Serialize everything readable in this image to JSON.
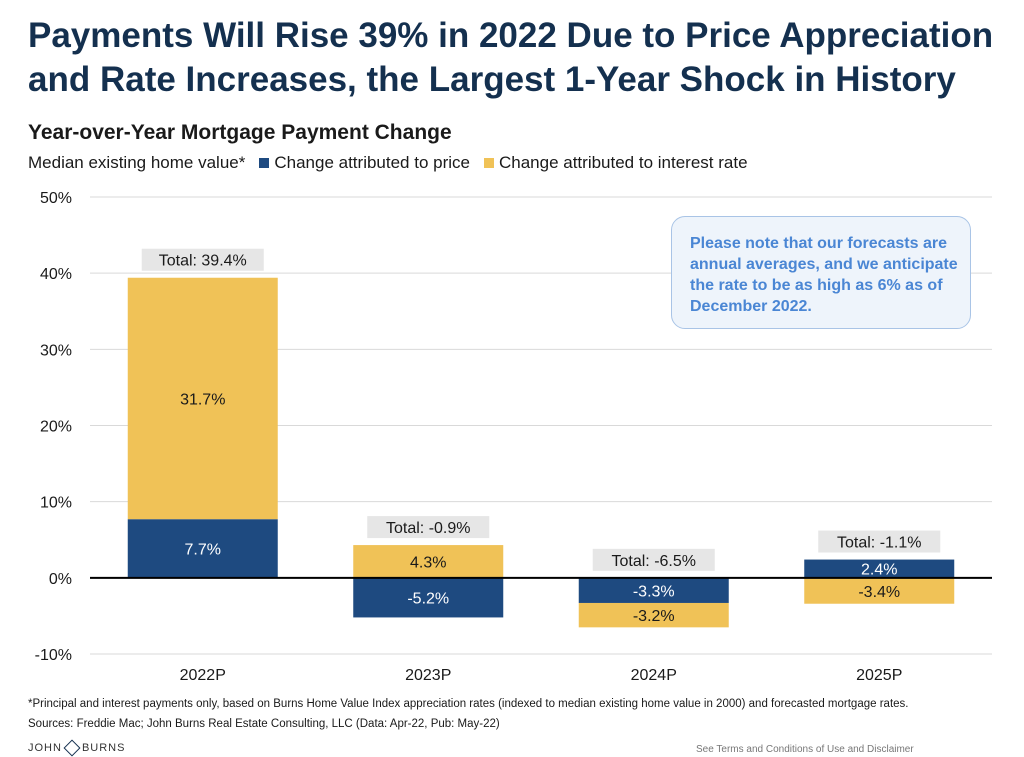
{
  "header": {
    "title": "Payments Will Rise 39% in 2022 Due to Price Appreciation and Rate Increases, the Largest 1-Year Shock in History"
  },
  "legend": {
    "prefix": "Median existing home value*",
    "price_label": "Change attributed to price",
    "rate_label": "Change attributed to interest rate"
  },
  "note": "Please note that our forecasts are annual averages, and we anticipate the rate to be as high as 6% as of December 2022.",
  "footer": {
    "footnote": "*Principal and interest payments only, based on Burns Home Value Index appreciation rates (indexed to median existing home value in 2000) and forecasted mortgage rates.",
    "sources": "Sources: Freddie Mac; John Burns Real Estate Consulting, LLC (Data: Apr-22, Pub: May-22)",
    "logo_left": "JOHN",
    "logo_right": "BURNS",
    "terms": "See Terms and Conditions of Use and Disclaimer"
  },
  "colors": {
    "price": "#1e4a80",
    "rate": "#f0c257",
    "grid": "#d9d9d9",
    "axis": "#000000",
    "total_bg": "#e6e6e6"
  },
  "chart_data": {
    "type": "bar",
    "stacked": true,
    "title": "Year-over-Year Mortgage Payment Change",
    "categories": [
      "2022P",
      "2023P",
      "2024P",
      "2025P"
    ],
    "series": [
      {
        "name": "Change attributed to price",
        "values": [
          7.7,
          -5.2,
          -3.3,
          2.4
        ],
        "labels": [
          "7.7%",
          "-5.2%",
          "-3.3%",
          "2.4%"
        ]
      },
      {
        "name": "Change attributed to interest rate",
        "values": [
          31.7,
          4.3,
          -3.2,
          -3.4
        ],
        "labels": [
          "31.7%",
          "4.3%",
          "-3.2%",
          "-3.4%"
        ]
      }
    ],
    "totals": [
      "Total: 39.4%",
      "Total: -0.9%",
      "Total: -6.5%",
      "Total: -1.1%"
    ],
    "ylim": [
      -10,
      50
    ],
    "yticks": [
      -10,
      0,
      10,
      20,
      30,
      40,
      50
    ],
    "ytick_labels": [
      "-10%",
      "0%",
      "10%",
      "20%",
      "30%",
      "40%",
      "50%"
    ],
    "grid": true,
    "legend_position": "top-left"
  }
}
